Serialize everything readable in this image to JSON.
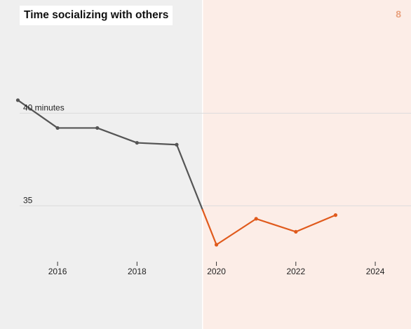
{
  "title": "Time socializing with others",
  "badge": "8",
  "colors": {
    "before_bg": "#efefef",
    "after_bg": "#fcede7",
    "before_line": "#555555",
    "after_line": "#e05a1c",
    "grid": "#dcdcdc"
  },
  "chart_data": {
    "type": "line",
    "title": "Time socializing with others",
    "xlabel": "",
    "ylabel": "",
    "x": [
      2015,
      2016,
      2017,
      2018,
      2019,
      2020,
      2021,
      2022,
      2023
    ],
    "y": [
      40.7,
      39.2,
      39.2,
      38.4,
      38.3,
      32.9,
      34.3,
      33.6,
      34.5
    ],
    "series": [
      {
        "name": "",
        "period": "before 2020",
        "x": [
          2015,
          2016,
          2017,
          2018,
          2019
        ],
        "y": [
          40.7,
          39.2,
          39.2,
          38.4,
          38.3
        ],
        "color": "#555555"
      },
      {
        "name": "",
        "period": "from 2020",
        "x": [
          2020,
          2021,
          2022,
          2023
        ],
        "y": [
          32.9,
          34.3,
          33.6,
          34.5
        ],
        "color": "#e05a1c"
      }
    ],
    "shaded_regions": [
      {
        "from": 2014.55,
        "to": 2019.65,
        "color": "#efefef"
      },
      {
        "from": 2019.65,
        "to": 2024.9,
        "color": "#fcede7"
      }
    ],
    "x_ticks": [
      2016,
      2018,
      2020,
      2022,
      2024
    ],
    "x_tick_labels": [
      "2016",
      "2018",
      "2020",
      "2022",
      "2024"
    ],
    "y_ticks": [
      35,
      40
    ],
    "y_tick_labels": [
      "35",
      "40 minutes"
    ],
    "xlim": [
      2014.55,
      2024.9
    ],
    "ylim": [
      32.1,
      42.7
    ],
    "grid": true
  }
}
